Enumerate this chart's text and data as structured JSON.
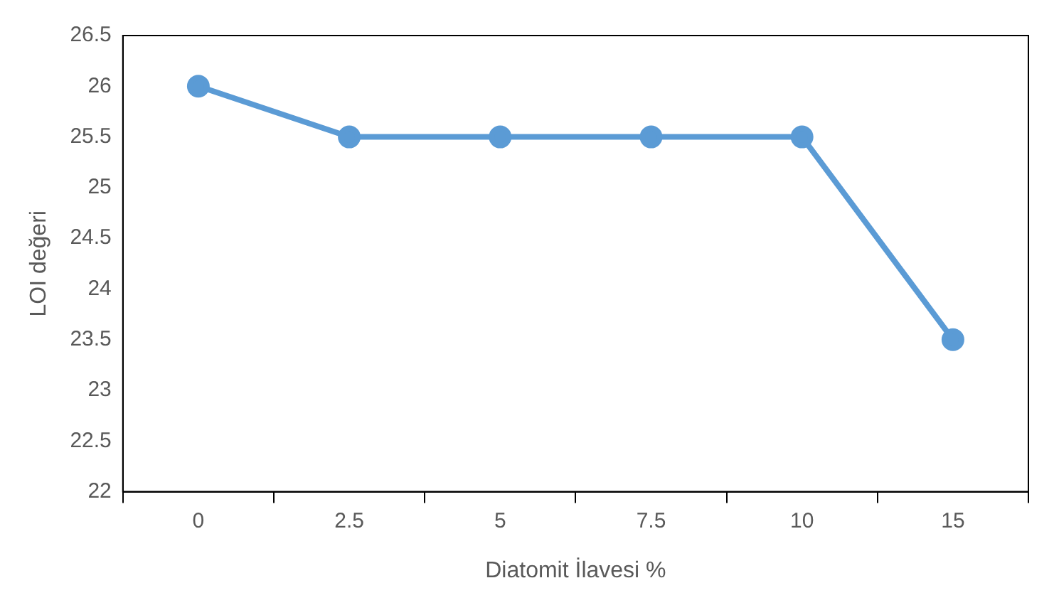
{
  "chart_data": {
    "type": "line",
    "xlabel": "Diatomit İlavesi %",
    "ylabel": "LOI değeri",
    "categories": [
      "0",
      "2.5",
      "5",
      "7.5",
      "10",
      "15"
    ],
    "series": [
      {
        "color": "#5b9bd5",
        "values": [
          26,
          25.5,
          25.5,
          25.5,
          25.5,
          23.5
        ]
      }
    ],
    "ylim": [
      22,
      26.5
    ],
    "yticks": [
      22,
      22.5,
      23,
      23.5,
      24,
      24.5,
      25,
      25.5,
      26,
      26.5
    ],
    "grid": false,
    "legend": false,
    "marker": "circle",
    "line_style": "solid"
  }
}
